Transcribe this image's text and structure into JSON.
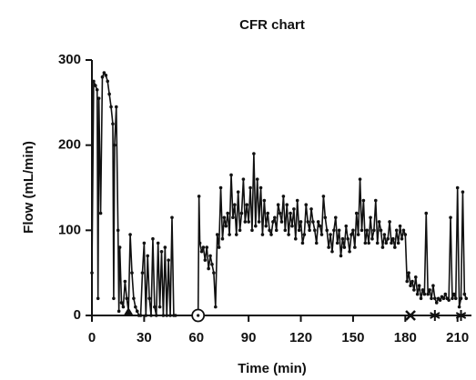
{
  "chart_data": {
    "type": "line",
    "title": "CFR chart",
    "x_label": "Time (min)",
    "y_label": "Flow (mL/min)",
    "x": [
      0,
      1,
      2,
      3,
      3.5,
      4,
      5,
      6,
      7,
      8,
      9,
      10,
      11,
      12,
      12.5,
      13,
      14,
      15,
      15.5,
      16,
      17,
      18,
      19,
      20,
      21,
      22,
      23,
      24,
      25,
      26,
      27,
      28,
      29,
      30,
      31,
      32,
      33,
      34,
      35,
      36,
      37,
      38,
      39,
      40,
      41,
      42,
      43,
      44,
      45,
      46,
      47,
      48,
      60,
      61,
      61.5,
      62,
      63,
      64,
      65,
      66,
      67,
      68,
      69,
      70,
      71,
      72,
      73,
      74,
      75,
      76,
      77,
      78,
      79,
      80,
      81,
      82,
      83,
      84,
      85,
      86,
      87,
      88,
      89,
      90,
      91,
      92,
      93,
      94,
      95,
      96,
      97,
      98,
      99,
      100,
      101,
      102,
      103,
      104,
      105,
      106,
      107,
      108,
      109,
      110,
      111,
      112,
      113,
      114,
      115,
      116,
      117,
      118,
      119,
      120,
      121,
      122,
      123,
      124,
      125,
      126,
      127,
      128,
      129,
      130,
      131,
      132,
      133,
      134,
      135,
      136,
      137,
      138,
      139,
      140,
      141,
      142,
      143,
      144,
      145,
      146,
      147,
      148,
      149,
      150,
      151,
      152,
      153,
      154,
      155,
      156,
      157,
      158,
      159,
      160,
      161,
      162,
      163,
      164,
      165,
      166,
      167,
      168,
      169,
      170,
      171,
      172,
      173,
      174,
      175,
      176,
      177,
      178,
      179,
      180,
      181,
      182,
      183,
      184,
      185,
      186,
      187,
      188,
      189,
      190,
      191,
      192,
      193,
      194,
      195,
      196,
      197,
      198,
      199,
      200,
      201,
      202,
      203,
      204,
      205,
      206,
      207,
      208,
      209,
      210,
      211,
      212,
      213,
      214,
      215
    ],
    "series": [
      {
        "name": "Flow",
        "color": "#111111",
        "values": [
          50,
          275,
          270,
          265,
          20,
          255,
          120,
          280,
          285,
          282,
          275,
          260,
          245,
          225,
          20,
          200,
          245,
          100,
          5,
          80,
          15,
          10,
          40,
          20,
          5,
          95,
          50,
          20,
          10,
          5,
          0,
          0,
          50,
          85,
          0,
          70,
          20,
          0,
          90,
          10,
          0,
          85,
          10,
          75,
          0,
          80,
          0,
          65,
          0,
          115,
          0,
          0,
          0,
          0,
          140,
          85,
          75,
          80,
          65,
          80,
          55,
          70,
          60,
          50,
          10,
          95,
          80,
          150,
          90,
          115,
          105,
          120,
          95,
          165,
          115,
          130,
          95,
          145,
          100,
          120,
          160,
          110,
          130,
          110,
          150,
          100,
          190,
          105,
          160,
          110,
          150,
          95,
          135,
          105,
          120,
          100,
          95,
          110,
          115,
          100,
          130,
          120,
          110,
          140,
          100,
          130,
          95,
          120,
          105,
          125,
          90,
          135,
          100,
          110,
          85,
          95,
          130,
          110,
          100,
          125,
          110,
          100,
          85,
          110,
          105,
          95,
          140,
          115,
          100,
          80,
          95,
          75,
          100,
          115,
          85,
          100,
          70,
          90,
          80,
          105,
          90,
          75,
          95,
          100,
          80,
          120,
          95,
          160,
          100,
          135,
          85,
          100,
          85,
          115,
          90,
          100,
          135,
          85,
          110,
          100,
          80,
          95,
          85,
          90,
          110,
          85,
          90,
          80,
          100,
          85,
          105,
          90,
          100,
          95,
          40,
          50,
          35,
          40,
          30,
          45,
          25,
          35,
          20,
          30,
          25,
          120,
          25,
          30,
          20,
          35,
          20,
          15,
          20,
          18,
          22,
          20,
          25,
          20,
          18,
          115,
          20,
          25,
          20,
          150,
          10,
          20,
          145,
          25,
          20
        ]
      }
    ],
    "xlim": [
      0,
      218
    ],
    "ylim": [
      0,
      300
    ],
    "xticks": [
      0,
      30,
      60,
      90,
      120,
      150,
      180,
      210
    ],
    "yticks": [
      0,
      100,
      200,
      300
    ],
    "markers": [
      {
        "x": 21,
        "shape": "triangle"
      },
      {
        "x": 61,
        "shape": "circle"
      },
      {
        "x": 183,
        "shape": "cross"
      },
      {
        "x": 197,
        "shape": "asterisk"
      },
      {
        "x": 212,
        "shape": "asterisk"
      }
    ]
  }
}
